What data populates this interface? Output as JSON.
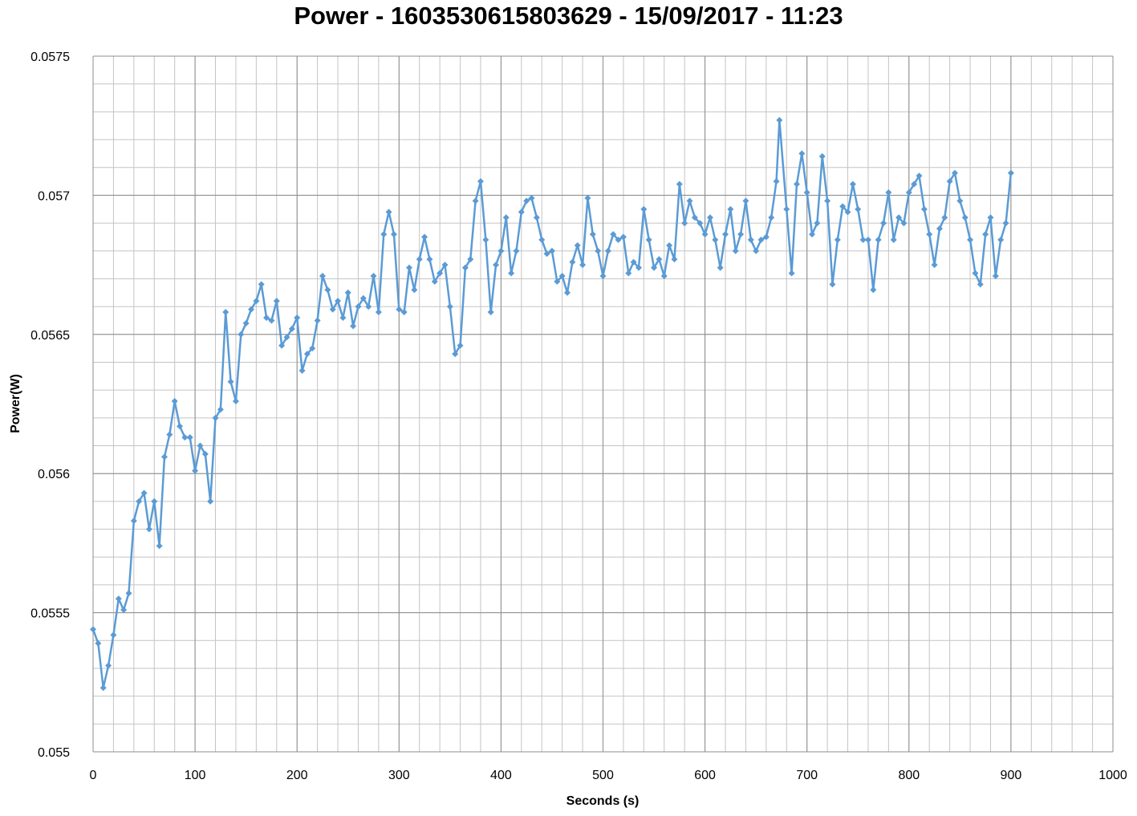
{
  "chart_data": {
    "type": "line",
    "title": "Power - 1603530615803629 - 15/09/2017 - 11:23",
    "xlabel": "Seconds (s)",
    "ylabel": "Power(W)",
    "xlim": [
      0,
      1000
    ],
    "ylim": [
      0.055,
      0.0575
    ],
    "x_ticks": [
      "0",
      "100",
      "200",
      "300",
      "400",
      "500",
      "600",
      "700",
      "800",
      "900",
      "1000"
    ],
    "y_ticks": [
      "0.055",
      "0.0555",
      "0.056",
      "0.0565",
      "0.057",
      "0.0575"
    ],
    "x_tick_values": [
      0,
      100,
      200,
      300,
      400,
      500,
      600,
      700,
      800,
      900,
      1000
    ],
    "y_tick_values": [
      0.055,
      0.0555,
      0.056,
      0.0565,
      0.057,
      0.0575
    ],
    "grid": {
      "major": true,
      "minor": true,
      "x_minor_step": 20,
      "y_minor_step": 0.0001
    },
    "marker": "diamond",
    "colors": {
      "series": "#5B9BD5",
      "major_grid": "#8c8c8c",
      "minor_grid": "#c4c4c4"
    },
    "series": [
      {
        "x": [
          0,
          5,
          10,
          15,
          20,
          25,
          30,
          35,
          40,
          45,
          50,
          55,
          60,
          65,
          70,
          75,
          80,
          85,
          90,
          95,
          100,
          105,
          110,
          115,
          120,
          125,
          130,
          135,
          140,
          145,
          150,
          155,
          160,
          165,
          170,
          175,
          180,
          185,
          190,
          195,
          200,
          205,
          210,
          215,
          220,
          225,
          230,
          235,
          240,
          245,
          250,
          255,
          260,
          265,
          270,
          275,
          280,
          285,
          290,
          295,
          300,
          305,
          310,
          315,
          320,
          325,
          330,
          335,
          340,
          345,
          350,
          355,
          360,
          365,
          370,
          375,
          380,
          385,
          390,
          395,
          400,
          405,
          410,
          415,
          420,
          425,
          430,
          435,
          440,
          445,
          450,
          455,
          460,
          465,
          470,
          475,
          480,
          485,
          490,
          495,
          500,
          505,
          510,
          515,
          520,
          525,
          530,
          535,
          540,
          545,
          550,
          555,
          560,
          565,
          570,
          575,
          580,
          585,
          590,
          595,
          600,
          605,
          610,
          615,
          620,
          625,
          630,
          635,
          640,
          645,
          650,
          655,
          660,
          665,
          670,
          673,
          680,
          685,
          690,
          695,
          700,
          705,
          710,
          715,
          720,
          725,
          730,
          735,
          740,
          745,
          750,
          755,
          760,
          765,
          770,
          775,
          780,
          785,
          790,
          795,
          800,
          805,
          810,
          815,
          820,
          825,
          830,
          835,
          840,
          845,
          850,
          855,
          860,
          865,
          870,
          875,
          880,
          885,
          890,
          895,
          900
        ],
        "y": [
          0.05544,
          0.05539,
          0.05523,
          0.05531,
          0.05542,
          0.05555,
          0.05551,
          0.05557,
          0.05583,
          0.0559,
          0.05593,
          0.0558,
          0.0559,
          0.05574,
          0.05606,
          0.05614,
          0.05626,
          0.05617,
          0.05613,
          0.05613,
          0.05601,
          0.0561,
          0.05607,
          0.0559,
          0.0562,
          0.05623,
          0.05658,
          0.05633,
          0.05626,
          0.0565,
          0.05654,
          0.05659,
          0.05662,
          0.05668,
          0.05656,
          0.05655,
          0.05662,
          0.05646,
          0.05649,
          0.05652,
          0.05656,
          0.05637,
          0.05643,
          0.05645,
          0.05655,
          0.05671,
          0.05666,
          0.05659,
          0.05662,
          0.05656,
          0.05665,
          0.05653,
          0.0566,
          0.05663,
          0.0566,
          0.05671,
          0.05658,
          0.05686,
          0.05694,
          0.05686,
          0.05659,
          0.05658,
          0.05674,
          0.05666,
          0.05677,
          0.05685,
          0.05677,
          0.05669,
          0.05672,
          0.05675,
          0.0566,
          0.05643,
          0.05646,
          0.05674,
          0.05677,
          0.05698,
          0.05705,
          0.05684,
          0.05658,
          0.05675,
          0.0568,
          0.05692,
          0.05672,
          0.0568,
          0.05694,
          0.05698,
          0.05699,
          0.05692,
          0.05684,
          0.05679,
          0.0568,
          0.05669,
          0.05671,
          0.05665,
          0.05676,
          0.05682,
          0.05675,
          0.05699,
          0.05686,
          0.0568,
          0.05671,
          0.0568,
          0.05686,
          0.05684,
          0.05685,
          0.05672,
          0.05676,
          0.05674,
          0.05695,
          0.05684,
          0.05674,
          0.05677,
          0.05671,
          0.05682,
          0.05677,
          0.05704,
          0.0569,
          0.05698,
          0.05692,
          0.0569,
          0.05686,
          0.05692,
          0.05684,
          0.05674,
          0.05686,
          0.05695,
          0.0568,
          0.05686,
          0.05698,
          0.05684,
          0.0568,
          0.05684,
          0.05685,
          0.05692,
          0.05705,
          0.05727,
          0.05695,
          0.05672,
          0.05704,
          0.05715,
          0.05701,
          0.05686,
          0.0569,
          0.05714,
          0.05698,
          0.05668,
          0.05684,
          0.05696,
          0.05694,
          0.05704,
          0.05695,
          0.05684,
          0.05684,
          0.05666,
          0.05684,
          0.0569,
          0.05701,
          0.05684,
          0.05692,
          0.0569,
          0.05701,
          0.05704,
          0.05707,
          0.05695,
          0.05686,
          0.05675,
          0.05688,
          0.05692,
          0.05705,
          0.05708,
          0.05698,
          0.05692,
          0.05684,
          0.05672,
          0.05668,
          0.05686,
          0.05692,
          0.05671,
          0.05684,
          0.0569,
          0.05708
        ]
      }
    ]
  }
}
